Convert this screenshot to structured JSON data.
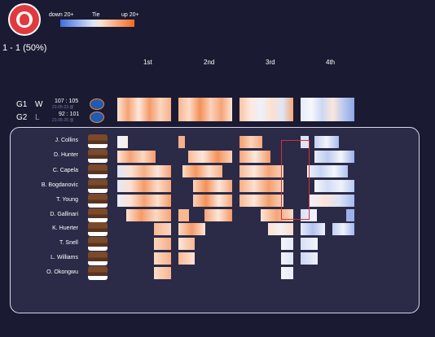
{
  "legend": {
    "left": "down 20+",
    "mid": "Tie",
    "right": "up 20+"
  },
  "record": "1 - 1 (50%)",
  "quarters": [
    "1st",
    "2nd",
    "3rd",
    "4th"
  ],
  "games": [
    {
      "id": "G1",
      "result": "W",
      "score": "107 : 105",
      "date": "21-05-23 @"
    },
    {
      "id": "G2",
      "result": "L",
      "score": "92 : 101",
      "date": "21-05-26 @"
    }
  ],
  "players": [
    "J. Collins",
    "D. Hunter",
    "C. Capela",
    "B. Bogdanovic",
    "T. Young",
    "D. Gallinari",
    "K. Huerter",
    "T. Snell",
    "L. Williams",
    "O. Okongwu"
  ],
  "colors": {
    "up": "#f26a22",
    "down": "#3f6ddc",
    "tie": "#f4f4f8",
    "highlight": "#d3303a"
  }
}
